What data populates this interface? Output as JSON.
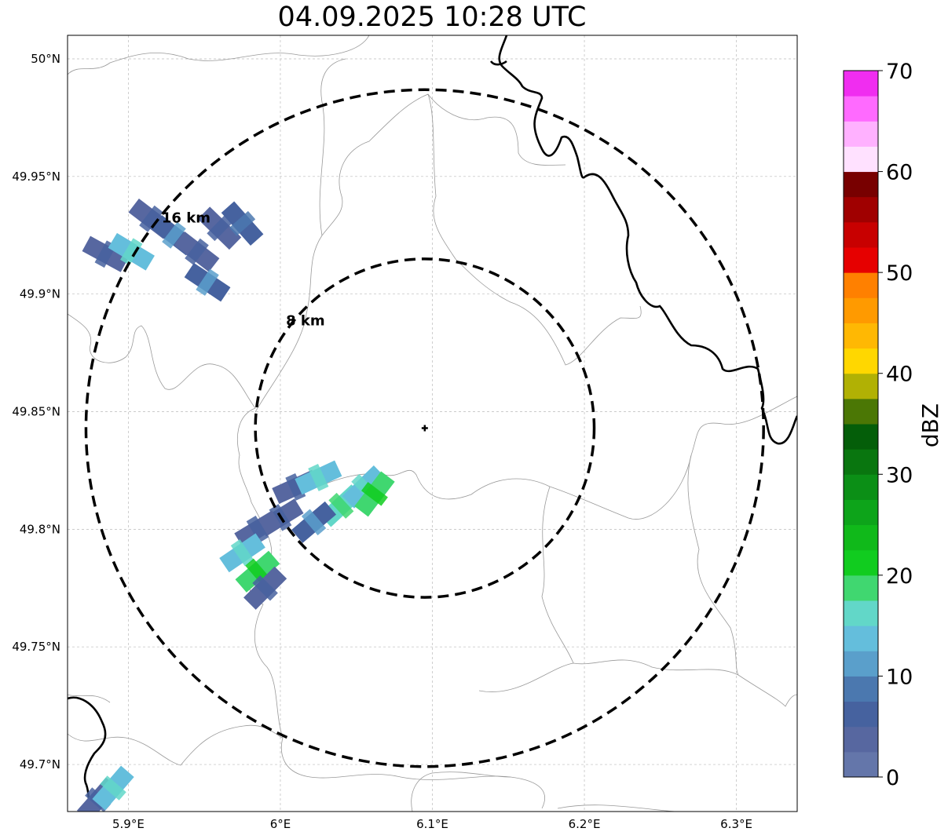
{
  "title": "04.09.2025 10:28 UTC",
  "map": {
    "lon_ticks": [
      {
        "value": 5.9,
        "label": "5.9°E"
      },
      {
        "value": 6.0,
        "label": "6°E"
      },
      {
        "value": 6.1,
        "label": "6.1°E"
      },
      {
        "value": 6.2,
        "label": "6.2°E"
      },
      {
        "value": 6.3,
        "label": "6.3°E"
      }
    ],
    "lat_ticks": [
      {
        "value": 50.0,
        "label": "50°N"
      },
      {
        "value": 49.95,
        "label": "49.95°N"
      },
      {
        "value": 49.9,
        "label": "49.9°N"
      },
      {
        "value": 49.85,
        "label": "49.85°N"
      },
      {
        "value": 49.8,
        "label": "49.8°N"
      },
      {
        "value": 49.75,
        "label": "49.75°N"
      },
      {
        "value": 49.7,
        "label": "49.7°N"
      }
    ],
    "extent": {
      "lon_min": 5.86,
      "lon_max": 6.34,
      "lat_min": 49.68,
      "lat_max": 50.01
    },
    "radar_site": {
      "lon": 6.095,
      "lat": 49.843
    },
    "range_rings": [
      {
        "radius_km": 8,
        "label": "8 km"
      },
      {
        "radius_km": 16,
        "label": "16 km"
      }
    ]
  },
  "colorbar": {
    "label": "dBZ",
    "ticks": [
      "0",
      "10",
      "20",
      "30",
      "40",
      "50",
      "60",
      "70"
    ],
    "min": 0,
    "max": 70,
    "step": 2.5,
    "colors": [
      "#6476aa",
      "#5767a0",
      "#46629f",
      "#4b78af",
      "#5a9fcb",
      "#64bedc",
      "#62d7c8",
      "#40d770",
      "#11cc1f",
      "#10b91a",
      "#0da41a",
      "#0b8f16",
      "#09760f",
      "#045e09",
      "#4b7705",
      "#b1b104",
      "#ffd700",
      "#ffb803",
      "#ff9a00",
      "#ff8000",
      "#e60000",
      "#c80000",
      "#a00000",
      "#780000",
      "#ffe1ff",
      "#ffb1ff",
      "#ff6aff",
      "#f02df0"
    ]
  },
  "echoes": [
    {
      "lon": 5.885,
      "lat": 49.917,
      "dbz": 3
    },
    {
      "lon": 5.902,
      "lat": 49.918,
      "dbz": 14
    },
    {
      "lon": 5.915,
      "lat": 49.932,
      "dbz": 3
    },
    {
      "lon": 5.93,
      "lat": 49.925,
      "dbz": 7
    },
    {
      "lon": 5.945,
      "lat": 49.918,
      "dbz": 3
    },
    {
      "lon": 5.96,
      "lat": 49.928,
      "dbz": 3
    },
    {
      "lon": 5.952,
      "lat": 49.905,
      "dbz": 7
    },
    {
      "lon": 5.975,
      "lat": 49.93,
      "dbz": 5
    },
    {
      "lon": 6.01,
      "lat": 49.818,
      "dbz": 3
    },
    {
      "lon": 6.025,
      "lat": 49.822,
      "dbz": 14
    },
    {
      "lon": 6.04,
      "lat": 49.81,
      "dbz": 15
    },
    {
      "lon": 6.055,
      "lat": 49.818,
      "dbz": 13
    },
    {
      "lon": 6.062,
      "lat": 49.815,
      "dbz": 19
    },
    {
      "lon": 6.022,
      "lat": 49.803,
      "dbz": 7
    },
    {
      "lon": 6.0,
      "lat": 49.805,
      "dbz": 3
    },
    {
      "lon": 5.985,
      "lat": 49.8,
      "dbz": 3
    },
    {
      "lon": 5.975,
      "lat": 49.79,
      "dbz": 14
    },
    {
      "lon": 5.985,
      "lat": 49.782,
      "dbz": 19
    },
    {
      "lon": 5.99,
      "lat": 49.775,
      "dbz": 3
    },
    {
      "lon": 5.88,
      "lat": 49.685,
      "dbz": 3
    },
    {
      "lon": 5.89,
      "lat": 49.69,
      "dbz": 13
    }
  ]
}
